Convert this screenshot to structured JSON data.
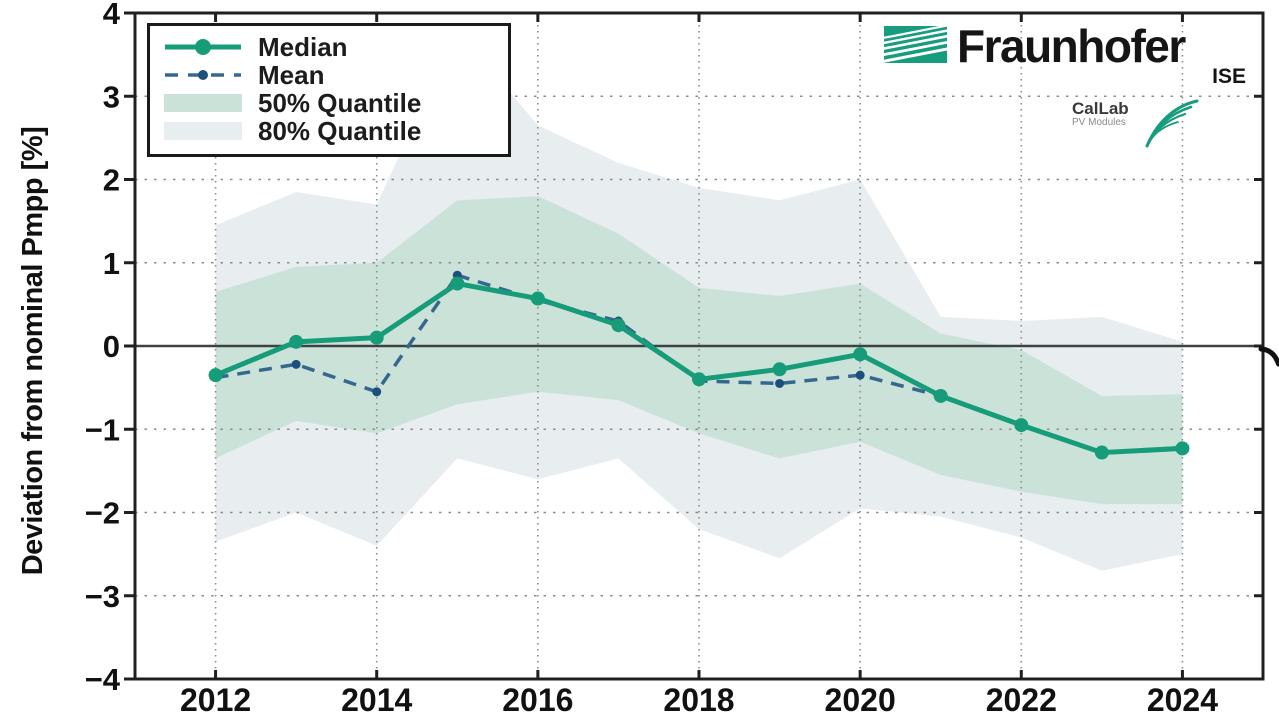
{
  "branding": {
    "fraunhofer": "Fraunhofer",
    "institute": "ISE",
    "callab_line1": "CalLab",
    "callab_line2": "PV Modules"
  },
  "legend": {
    "items": [
      {
        "label": "Median",
        "swatch": "solid-line-with-marker"
      },
      {
        "label": "Mean",
        "swatch": "dashed-line-with-dot"
      },
      {
        "label": "50% Quantile",
        "swatch": "green-fill"
      },
      {
        "label": "80% Quantile",
        "swatch": "gray-fill"
      }
    ]
  },
  "colors": {
    "median": "#169c78",
    "mean_line": "#35688f",
    "mean_dot": "#1d4f7c",
    "band50": "#cbe2d9",
    "band80": "#e8edf0",
    "zero_line": "#3d4242",
    "grid": "#8c8c8c",
    "frame": "#1f1f1f",
    "brand_green": "#179c7d"
  },
  "chart_data": {
    "type": "line",
    "title": "",
    "xlabel": "",
    "ylabel": "Deviation from nominal Pmpp [%]",
    "x": [
      2012,
      2013,
      2014,
      2015,
      2016,
      2017,
      2018,
      2019,
      2020,
      2021,
      2022,
      2023,
      2024
    ],
    "xticks": [
      2012,
      2014,
      2016,
      2018,
      2020,
      2022,
      2024
    ],
    "yticks": [
      4,
      3,
      2,
      1,
      0,
      -1,
      -2,
      -3,
      -4
    ],
    "xlim": [
      2011,
      2025
    ],
    "ylim": [
      -4,
      4
    ],
    "grid": true,
    "legend_position": "upper left",
    "series": [
      {
        "name": "Median",
        "type": "line",
        "values": [
          -0.35,
          0.05,
          0.1,
          0.75,
          0.57,
          0.25,
          -0.4,
          -0.28,
          -0.1,
          -0.6,
          -0.95,
          -1.28,
          -1.23
        ]
      },
      {
        "name": "Mean",
        "type": "dashed-line",
        "values": [
          -0.38,
          -0.22,
          -0.55,
          0.85,
          0.55,
          0.3,
          -0.42,
          -0.45,
          -0.35,
          -0.6,
          -0.95,
          -1.28,
          -1.22
        ]
      },
      {
        "name": "50% Quantile",
        "type": "band",
        "upper": [
          0.65,
          0.95,
          1.0,
          1.75,
          1.8,
          1.35,
          0.7,
          0.6,
          0.75,
          0.15,
          -0.05,
          -0.6,
          -0.58
        ],
        "lower": [
          -1.35,
          -0.9,
          -1.05,
          -0.7,
          -0.55,
          -0.65,
          -1.05,
          -1.35,
          -1.15,
          -1.55,
          -1.75,
          -1.9,
          -1.9
        ]
      },
      {
        "name": "80% Quantile",
        "type": "band",
        "upper": [
          1.45,
          1.85,
          1.7,
          3.8,
          2.65,
          2.2,
          1.9,
          1.75,
          2.0,
          0.35,
          0.3,
          0.35,
          0.05
        ],
        "lower": [
          -2.35,
          -2.0,
          -2.4,
          -1.35,
          -1.6,
          -1.35,
          -2.2,
          -2.55,
          -1.95,
          -2.05,
          -2.3,
          -2.7,
          -2.5
        ]
      }
    ]
  }
}
